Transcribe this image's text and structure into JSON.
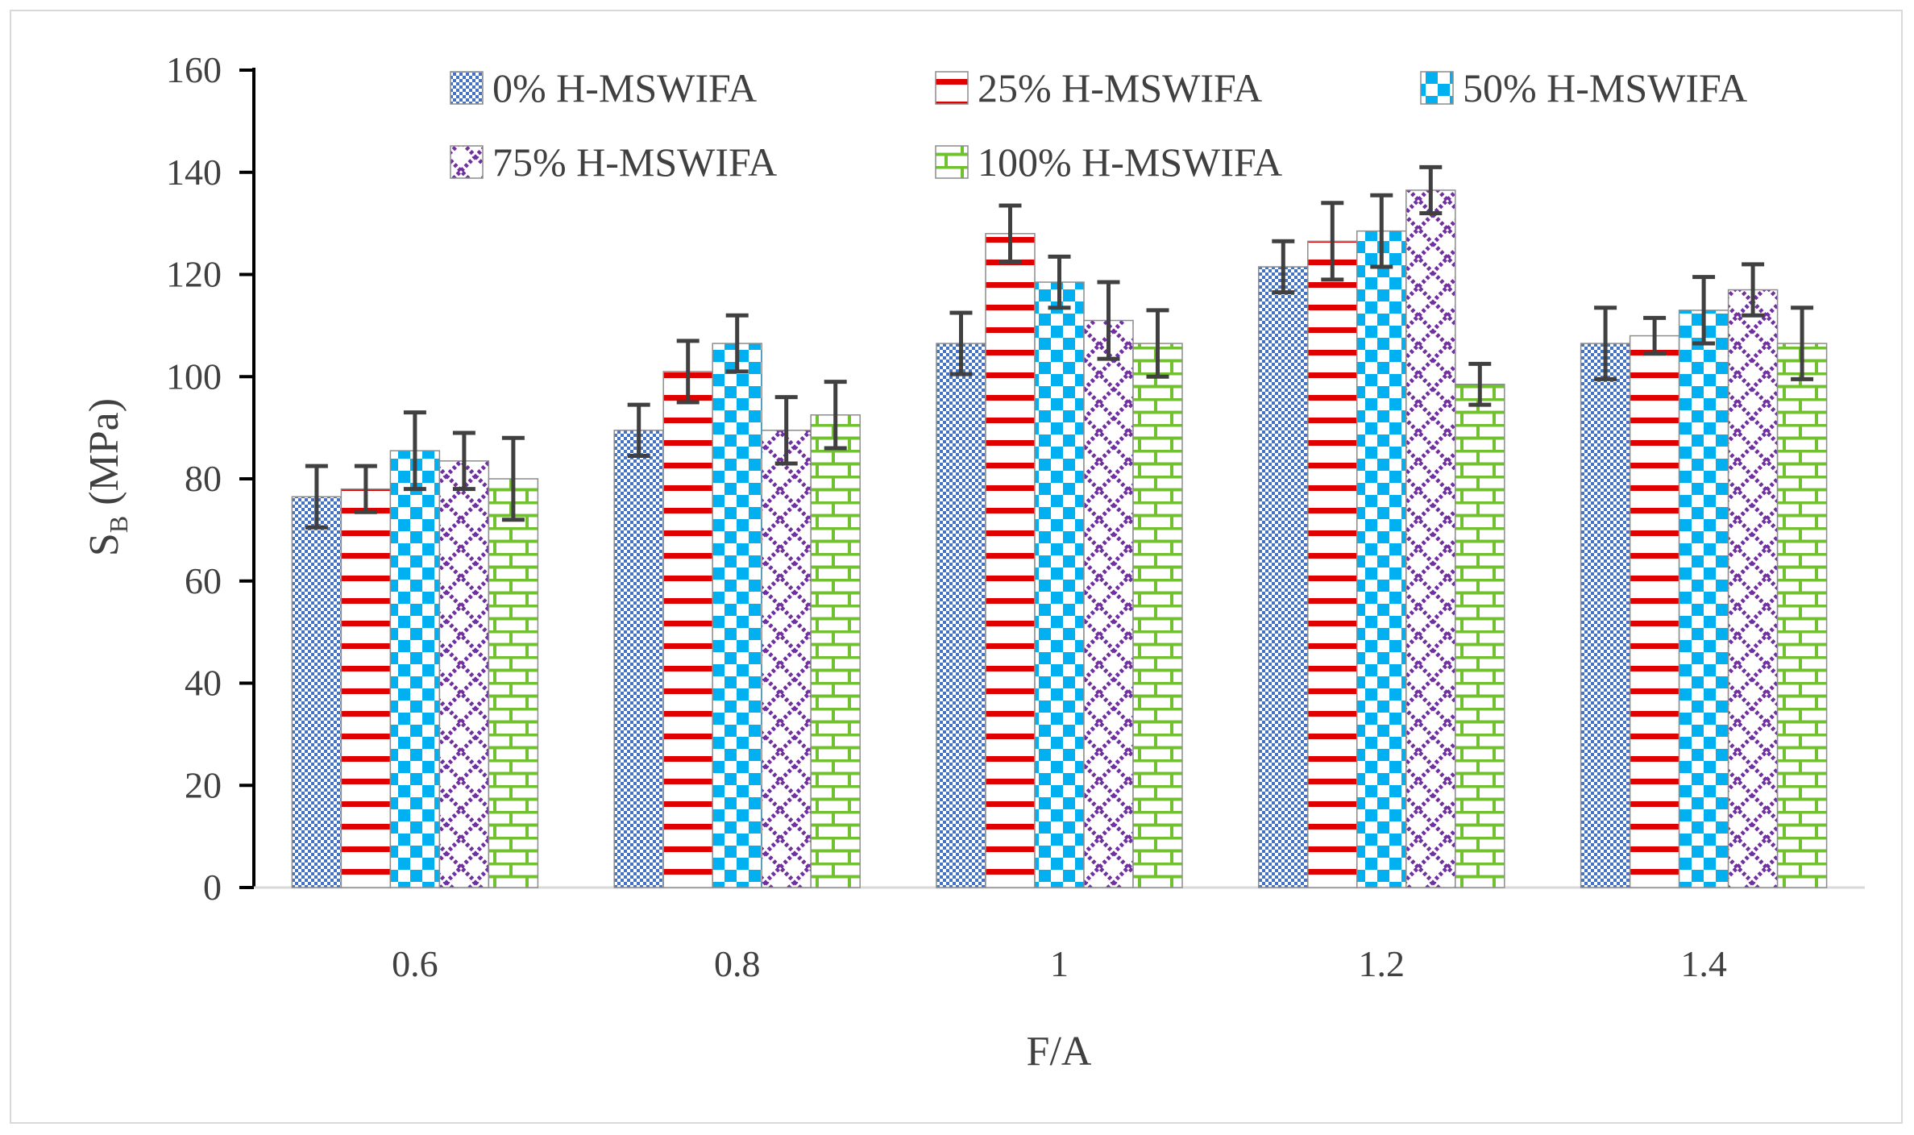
{
  "chart_data": {
    "type": "bar",
    "title": "",
    "xlabel": "F/A",
    "ylabel_main": "S",
    "ylabel_sub": "B",
    "ylabel_unit": " (MPa)",
    "ylim": [
      0,
      160
    ],
    "yticks": [
      "0",
      "20",
      "40",
      "60",
      "80",
      "100",
      "120",
      "140",
      "160"
    ],
    "categories": [
      "0.6",
      "0.8",
      "1",
      "1.2",
      "1.4"
    ],
    "grid": false,
    "legend_position": "top",
    "series": [
      {
        "name": "0% H-MSWIFA",
        "values": [
          76.5,
          89.5,
          106.5,
          121.5,
          106.5
        ],
        "errors": [
          6,
          5,
          6,
          5,
          7
        ],
        "pattern": "fine-checker",
        "color": "#4472C4"
      },
      {
        "name": "25% H-MSWIFA",
        "values": [
          78,
          101,
          128,
          126.5,
          108
        ],
        "errors": [
          4.5,
          6,
          5.5,
          7.5,
          3.5
        ],
        "pattern": "horizontal-stripes",
        "color": "#E00000"
      },
      {
        "name": "50% H-MSWIFA",
        "values": [
          85.5,
          106.5,
          118.5,
          128.5,
          113
        ],
        "errors": [
          7.5,
          5.5,
          5,
          7,
          6.5
        ],
        "pattern": "large-checker",
        "color": "#00B0F0"
      },
      {
        "name": "75% H-MSWIFA",
        "values": [
          83.5,
          89.5,
          111,
          136.5,
          117
        ],
        "errors": [
          5.5,
          6.5,
          7.5,
          4.5,
          5
        ],
        "pattern": "diamond-lattice",
        "color": "#7030A0"
      },
      {
        "name": "100% H-MSWIFA",
        "values": [
          80,
          92.5,
          106.5,
          98.5,
          106.5
        ],
        "errors": [
          8,
          6.5,
          6.5,
          4,
          7
        ],
        "pattern": "brick",
        "color": "#70C030"
      }
    ]
  }
}
